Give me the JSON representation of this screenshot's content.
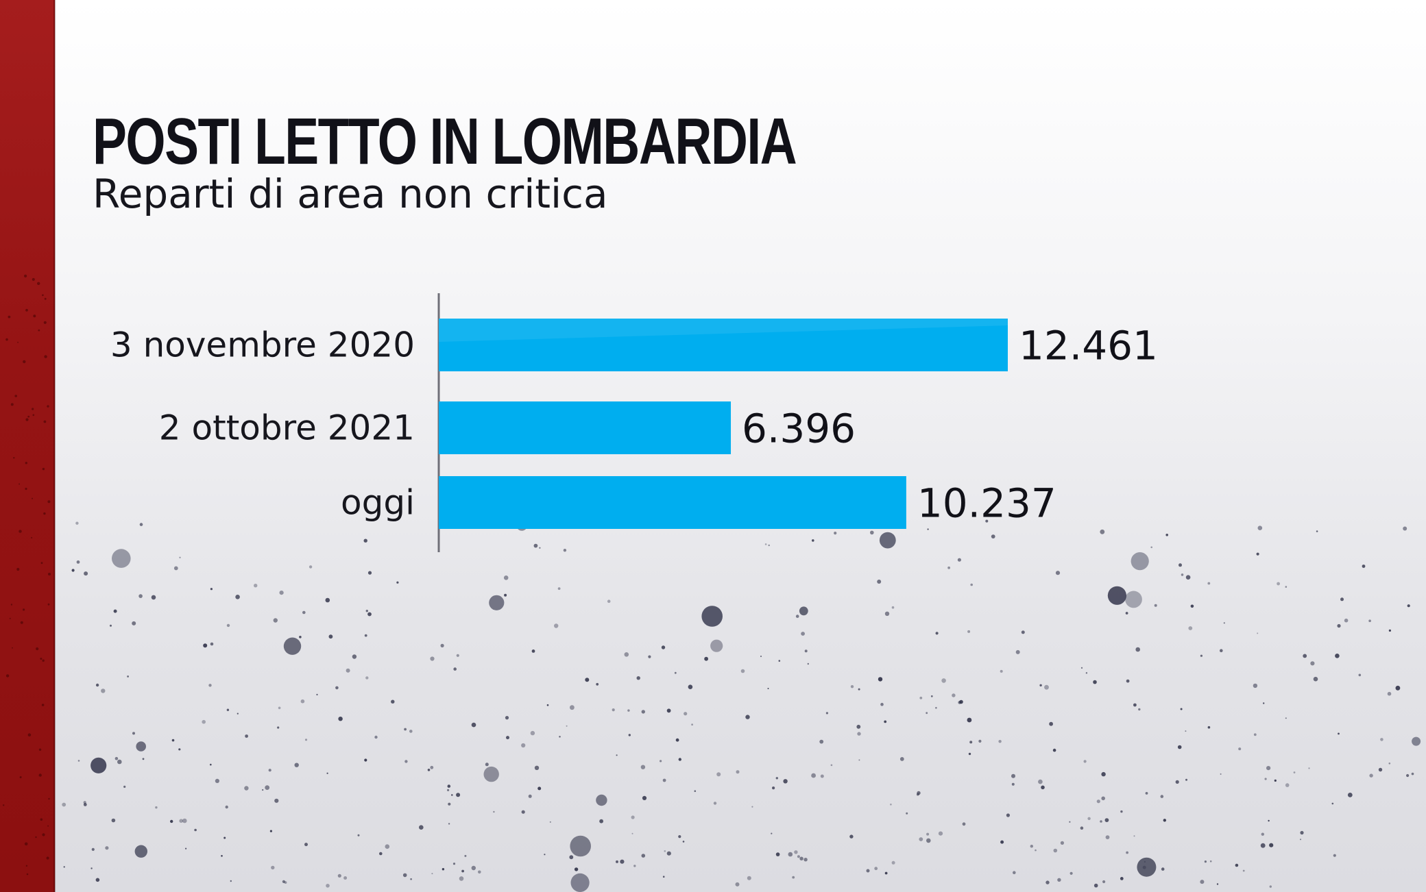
{
  "chart_data": {
    "type": "bar",
    "orientation": "horizontal",
    "title": "POSTI LETTO IN LOMBARDIA",
    "subtitle": "Reparti di area non critica",
    "categories": [
      "3 novembre 2020",
      "2 ottobre 2021",
      "oggi"
    ],
    "values": [
      12461,
      6396,
      10237
    ],
    "value_labels": [
      "12.461",
      "6.396",
      "10.237"
    ],
    "xlabel": "",
    "ylabel": "",
    "xlim": [
      0,
      12461
    ],
    "grid": false,
    "legend": "none",
    "bar_color": "#00aeef"
  },
  "theme": {
    "accent": "#9e1a1a",
    "text": "#111118",
    "background": "#ececef",
    "dot_color": "#2c2e45"
  }
}
